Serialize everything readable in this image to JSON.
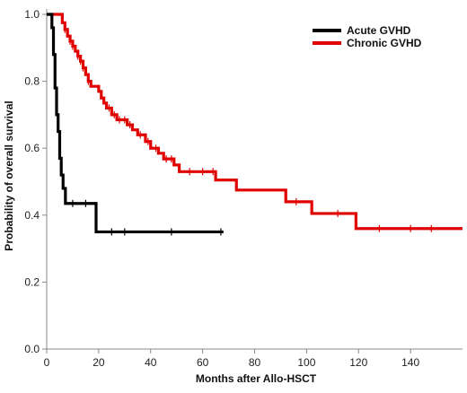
{
  "chart_data": {
    "type": "line",
    "subtype": "kaplan-meier-step",
    "title": "",
    "xlabel": "Months after Allo-HSCT",
    "ylabel": "Probability of overall survival",
    "xlim": [
      0,
      160
    ],
    "ylim": [
      0,
      1.0
    ],
    "xticks": [
      "0",
      "20",
      "40",
      "60",
      "80",
      "100",
      "120",
      "140"
    ],
    "yticks": [
      "0.0",
      "0.2",
      "0.4",
      "0.6",
      "0.8",
      "1.0"
    ],
    "xtick_values": [
      0,
      20,
      40,
      60,
      80,
      100,
      120,
      140
    ],
    "ytick_values": [
      0,
      0.2,
      0.4,
      0.6,
      0.8,
      1.0
    ],
    "grid": false,
    "legend": "top-right",
    "series": [
      {
        "name": "Acute GVHD",
        "color": "#000000",
        "steps": [
          [
            0,
            1.0
          ],
          [
            2,
            0.96
          ],
          [
            2.6,
            0.88
          ],
          [
            3.2,
            0.78
          ],
          [
            3.8,
            0.7
          ],
          [
            4.4,
            0.65
          ],
          [
            5.0,
            0.57
          ],
          [
            5.6,
            0.52
          ],
          [
            6.3,
            0.48
          ],
          [
            7.2,
            0.435
          ],
          [
            19,
            0.35
          ],
          [
            68,
            0.35
          ]
        ],
        "censor_x": [
          10,
          15,
          25,
          30,
          48,
          67
        ]
      },
      {
        "name": "Chronic GVHD",
        "color": "#e00000",
        "steps": [
          [
            0,
            1.0
          ],
          [
            5,
            1.0
          ],
          [
            6,
            0.975
          ],
          [
            7,
            0.955
          ],
          [
            8,
            0.935
          ],
          [
            9,
            0.92
          ],
          [
            10,
            0.905
          ],
          [
            11,
            0.89
          ],
          [
            12,
            0.875
          ],
          [
            13,
            0.86
          ],
          [
            14,
            0.84
          ],
          [
            15,
            0.82
          ],
          [
            16,
            0.8
          ],
          [
            17,
            0.785
          ],
          [
            20,
            0.77
          ],
          [
            21,
            0.75
          ],
          [
            22,
            0.735
          ],
          [
            23,
            0.72
          ],
          [
            25,
            0.7
          ],
          [
            27,
            0.685
          ],
          [
            31,
            0.67
          ],
          [
            33,
            0.655
          ],
          [
            35,
            0.64
          ],
          [
            38,
            0.62
          ],
          [
            40,
            0.6
          ],
          [
            43,
            0.585
          ],
          [
            45,
            0.568
          ],
          [
            49,
            0.55
          ],
          [
            51,
            0.53
          ],
          [
            65,
            0.505
          ],
          [
            73,
            0.475
          ],
          [
            92,
            0.44
          ],
          [
            102,
            0.405
          ],
          [
            119,
            0.36
          ],
          [
            160,
            0.36
          ]
        ],
        "censor_x": [
          7,
          9,
          10,
          12,
          13,
          14,
          16,
          24,
          26,
          28,
          30,
          32,
          36,
          39,
          42,
          46,
          48,
          55,
          60,
          64,
          96,
          112,
          128,
          140,
          148
        ]
      }
    ]
  }
}
